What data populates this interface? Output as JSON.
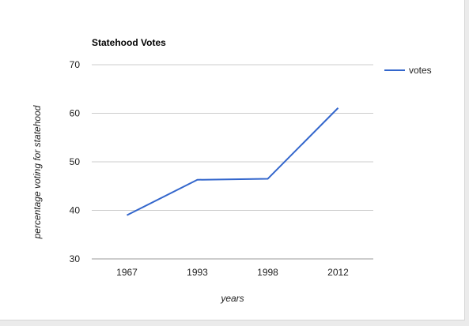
{
  "chart_data": {
    "type": "line",
    "title": "Statehood Votes",
    "xlabel": "years",
    "ylabel": "percentage voting for statehood",
    "categories": [
      "1967",
      "1993",
      "1998",
      "2012"
    ],
    "series": [
      {
        "name": "votes",
        "values": [
          39,
          46.3,
          46.5,
          61.1
        ]
      }
    ],
    "ylim": [
      30,
      70
    ],
    "yticks": [
      30,
      40,
      50,
      60,
      70
    ],
    "grid": true,
    "legend": "right",
    "colors": {
      "line": "#3366cc",
      "grid": "#cccccc",
      "baseline": "#999999"
    }
  }
}
